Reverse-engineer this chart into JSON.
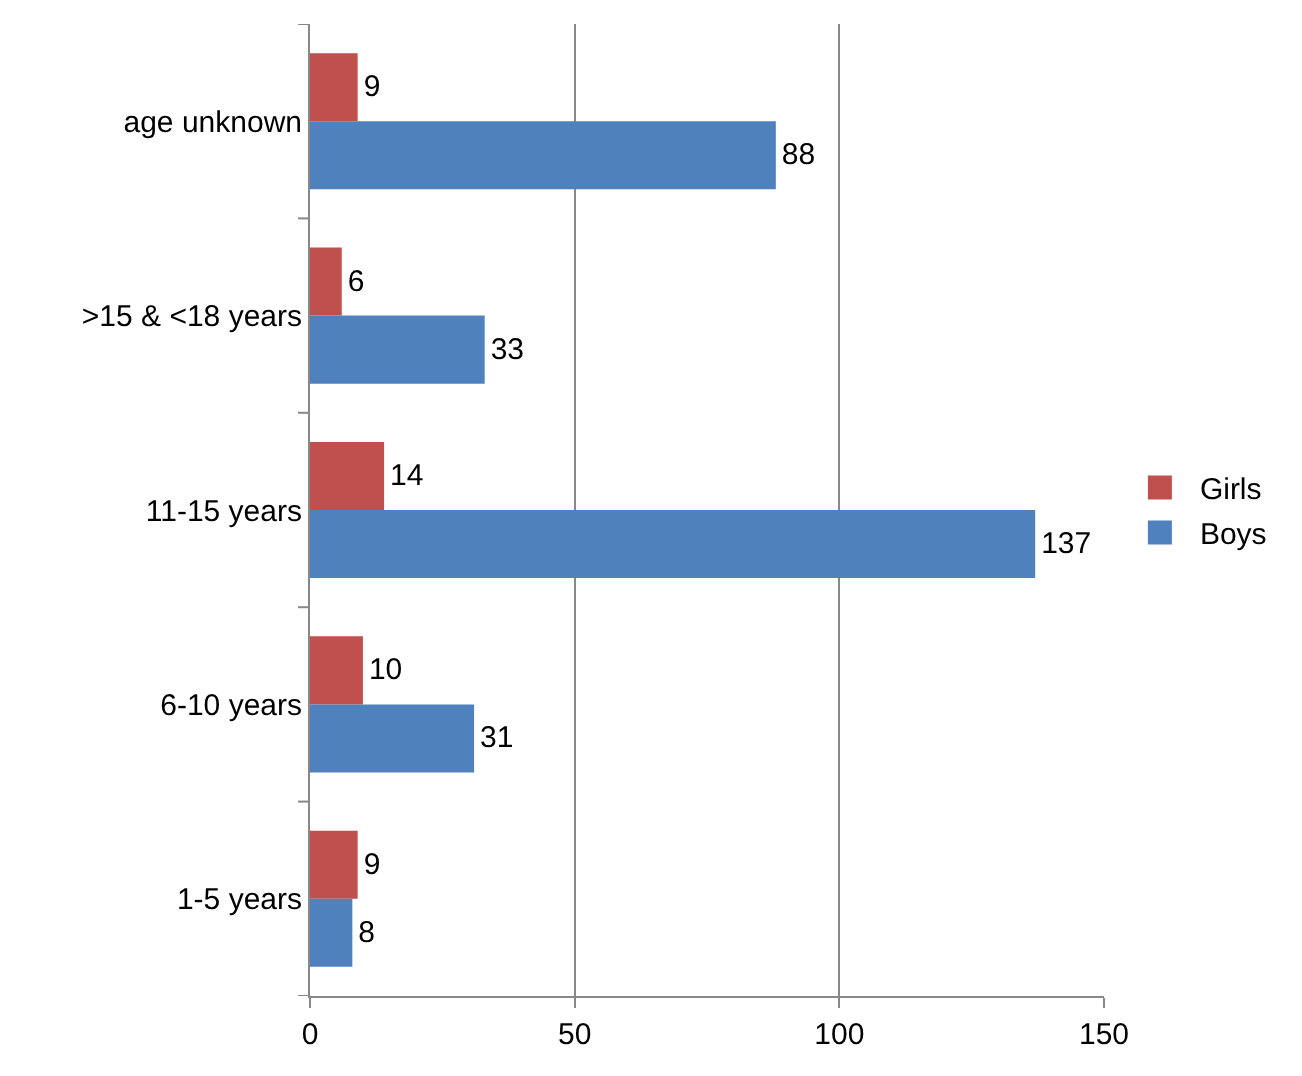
{
  "chart_data": {
    "type": "bar",
    "orientation": "horizontal",
    "categories": [
      "age unknown",
      ">15 & <18 years",
      "11-15 years",
      "6-10 years",
      "1-5 years"
    ],
    "series": [
      {
        "name": "Girls",
        "color": "#c0504d",
        "values": [
          9,
          6,
          14,
          10,
          9
        ]
      },
      {
        "name": "Boys",
        "color": "#4f81bd",
        "values": [
          88,
          33,
          137,
          31,
          8
        ]
      }
    ],
    "xlim": [
      0,
      150
    ],
    "xticks": [
      0,
      50,
      100,
      150
    ],
    "grid": "x",
    "legend": "right",
    "data_labels": true
  }
}
